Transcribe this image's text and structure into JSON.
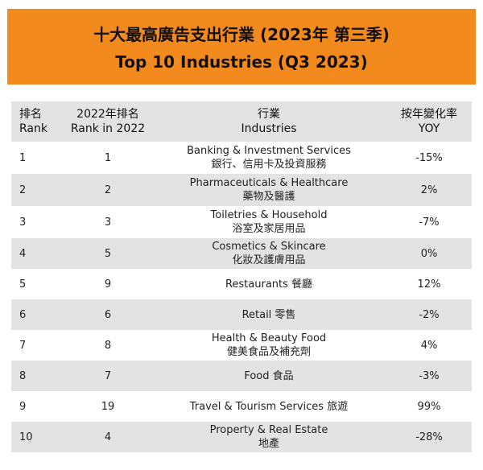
{
  "title_zh": "十大最高廣告支出行業 (2023年 第三季)",
  "title_en": "Top 10 Industries (Q3 2023)",
  "header": {
    "rank_zh": "排名",
    "rank_en": "Rank",
    "prev_zh": "2022年排名",
    "prev_en": "Rank in 2022",
    "ind_zh": "行業",
    "ind_en": "Industries",
    "yoy_zh": "按年變化率",
    "yoy_en": "YOY"
  },
  "rows": [
    {
      "rank": "1",
      "prev": "1",
      "line1": "Banking & Investment Services",
      "line2": "銀行、信用卡及投資服務",
      "yoy": "-15%"
    },
    {
      "rank": "2",
      "prev": "2",
      "line1": "Pharmaceuticals & Healthcare",
      "line2": "藥物及醫護",
      "yoy": "2%"
    },
    {
      "rank": "3",
      "prev": "3",
      "line1": "Toiletries & Household",
      "line2": "浴室及家居用品",
      "yoy": "-7%"
    },
    {
      "rank": "4",
      "prev": "5",
      "line1": "Cosmetics & Skincare",
      "line2": "化妝及護膚用品",
      "yoy": "0%"
    },
    {
      "rank": "5",
      "prev": "9",
      "line1": "Restaurants 餐廳",
      "line2": "",
      "yoy": "12%"
    },
    {
      "rank": "6",
      "prev": "6",
      "line1": "Retail 零售",
      "line2": "",
      "yoy": "-2%"
    },
    {
      "rank": "7",
      "prev": "8",
      "line1": "Health & Beauty Food",
      "line2": "健美食品及補充劑",
      "yoy": "4%"
    },
    {
      "rank": "8",
      "prev": "7",
      "line1": "Food 食品",
      "line2": "",
      "yoy": "-3%"
    },
    {
      "rank": "9",
      "prev": "19",
      "line1": "Travel & Tourism Services 旅遊",
      "line2": "",
      "yoy": "99%"
    },
    {
      "rank": "10",
      "prev": "4",
      "line1": "Property & Real Estate",
      "line2": "地產",
      "yoy": "-28%"
    }
  ]
}
